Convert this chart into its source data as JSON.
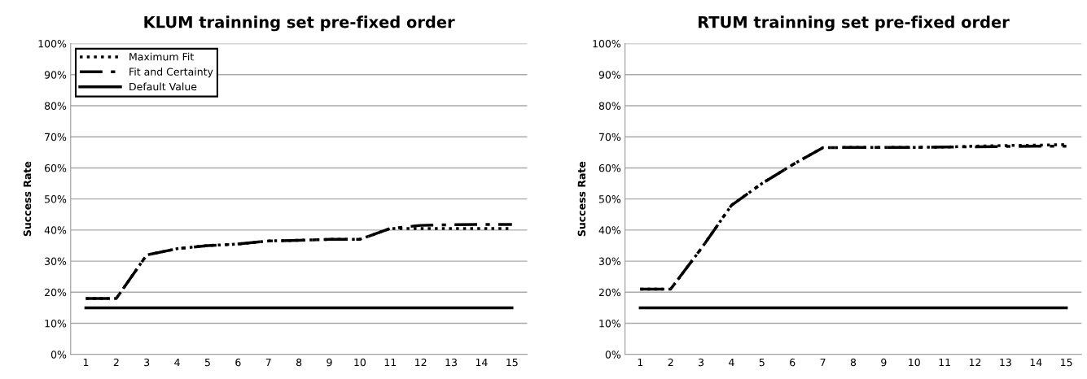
{
  "chart_data": [
    {
      "type": "line",
      "title": "KLUM trainning set pre-fixed order",
      "ylabel": "Success Rate",
      "categories": [
        "1",
        "2",
        "3",
        "4",
        "5",
        "6",
        "7",
        "8",
        "9",
        "10",
        "11",
        "12",
        "13",
        "14",
        "15"
      ],
      "ylim": [
        0,
        100
      ],
      "yticks": [
        {
          "value": 0,
          "label": "0%"
        },
        {
          "value": 10,
          "label": "10%"
        },
        {
          "value": 20,
          "label": "20%"
        },
        {
          "value": 30,
          "label": "30%"
        },
        {
          "value": 40,
          "label": "40%"
        },
        {
          "value": 50,
          "label": "50%"
        },
        {
          "value": 60,
          "label": "60%"
        },
        {
          "value": 70,
          "label": "70%"
        },
        {
          "value": 80,
          "label": "80%"
        },
        {
          "value": 90,
          "label": "90%"
        },
        {
          "value": 100,
          "label": "100%"
        }
      ],
      "grid": "y",
      "legend": "top left",
      "marker": "none",
      "series": [
        {
          "name": "Maximum Fit",
          "color": "#000000",
          "line_style": "dotted",
          "values": [
            18,
            18,
            32,
            34,
            35,
            35.5,
            36.5,
            36.7,
            37,
            37,
            40.5,
            40.5,
            40.5,
            40.5,
            40.5
          ]
        },
        {
          "name": "Fit and Certainty",
          "color": "#000000",
          "line_style": "dashed",
          "values": [
            18,
            18,
            32,
            34,
            35,
            35.5,
            36.5,
            36.7,
            37,
            37,
            40.5,
            41.5,
            41.7,
            41.8,
            41.8
          ]
        },
        {
          "name": "Default Value",
          "color": "#000000",
          "line_style": "solid",
          "values": [
            15,
            15,
            15,
            15,
            15,
            15,
            15,
            15,
            15,
            15,
            15,
            15,
            15,
            15,
            15
          ]
        }
      ]
    },
    {
      "type": "line",
      "title": "RTUM trainning set pre-fixed order",
      "ylabel": "Success Rate",
      "categories": [
        "1",
        "2",
        "3",
        "4",
        "5",
        "6",
        "7",
        "8",
        "9",
        "10",
        "11",
        "12",
        "13",
        "14",
        "15"
      ],
      "ylim": [
        0,
        100
      ],
      "yticks": [
        {
          "value": 0,
          "label": "0%"
        },
        {
          "value": 10,
          "label": "10%"
        },
        {
          "value": 20,
          "label": "20%"
        },
        {
          "value": 30,
          "label": "30%"
        },
        {
          "value": 40,
          "label": "40%"
        },
        {
          "value": 50,
          "label": "50%"
        },
        {
          "value": 60,
          "label": "60%"
        },
        {
          "value": 70,
          "label": "70%"
        },
        {
          "value": 80,
          "label": "80%"
        },
        {
          "value": 90,
          "label": "90%"
        },
        {
          "value": 100,
          "label": "100%"
        }
      ],
      "grid": "y",
      "marker": "none",
      "series": [
        {
          "color": "#000000",
          "line_style": "dotted",
          "values": [
            21,
            21,
            34,
            48,
            55,
            61,
            66.5,
            66.6,
            66.6,
            66.6,
            66.7,
            67,
            67.2,
            67.3,
            67.5
          ]
        },
        {
          "color": "#000000",
          "line_style": "dashed",
          "values": [
            21,
            21,
            34,
            48,
            55,
            61,
            66.5,
            66.6,
            66.6,
            66.6,
            66.7,
            66.8,
            66.9,
            67,
            67
          ]
        },
        {
          "color": "#000000",
          "line_style": "solid",
          "values": [
            15,
            15,
            15,
            15,
            15,
            15,
            15,
            15,
            15,
            15,
            15,
            15,
            15,
            15,
            15
          ]
        }
      ]
    }
  ]
}
